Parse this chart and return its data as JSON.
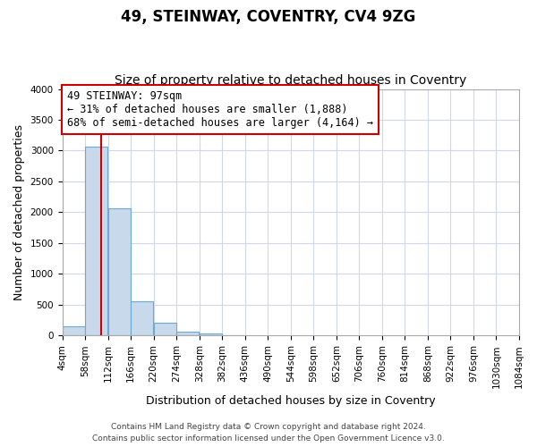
{
  "title": "49, STEINWAY, COVENTRY, CV4 9ZG",
  "subtitle": "Size of property relative to detached houses in Coventry",
  "xlabel": "Distribution of detached houses by size in Coventry",
  "ylabel": "Number of detached properties",
  "bin_edges": [
    4,
    58,
    112,
    166,
    220,
    274,
    328,
    382,
    436,
    490,
    544,
    598,
    652,
    706,
    760,
    814,
    868,
    922,
    976,
    1030,
    1084
  ],
  "bar_heights": [
    150,
    3060,
    2060,
    560,
    210,
    65,
    35,
    10,
    0,
    0,
    0,
    0,
    0,
    0,
    0,
    0,
    0,
    0,
    0,
    0
  ],
  "bar_color": "#c8d9ec",
  "bar_edge_color": "#6aaad4",
  "property_size": 97,
  "marker_line_color": "#cc0000",
  "annotation_line1": "49 STEINWAY: 97sqm",
  "annotation_line2": "← 31% of detached houses are smaller (1,888)",
  "annotation_line3": "68% of semi-detached houses are larger (4,164) →",
  "annotation_box_color": "#ffffff",
  "annotation_box_edge_color": "#cc0000",
  "ylim": [
    0,
    4000
  ],
  "tick_labels": [
    "4sqm",
    "58sqm",
    "112sqm",
    "166sqm",
    "220sqm",
    "274sqm",
    "328sqm",
    "382sqm",
    "436sqm",
    "490sqm",
    "544sqm",
    "598sqm",
    "652sqm",
    "706sqm",
    "760sqm",
    "814sqm",
    "868sqm",
    "922sqm",
    "976sqm",
    "1030sqm",
    "1084sqm"
  ],
  "footer_line1": "Contains HM Land Registry data © Crown copyright and database right 2024.",
  "footer_line2": "Contains public sector information licensed under the Open Government Licence v3.0.",
  "bg_color": "#ffffff",
  "plot_bg_color": "#ffffff",
  "grid_color": "#d0d8e8",
  "title_fontsize": 12,
  "subtitle_fontsize": 10,
  "axis_label_fontsize": 9,
  "tick_fontsize": 7.5,
  "annotation_fontsize": 8.5,
  "footer_fontsize": 6.5
}
